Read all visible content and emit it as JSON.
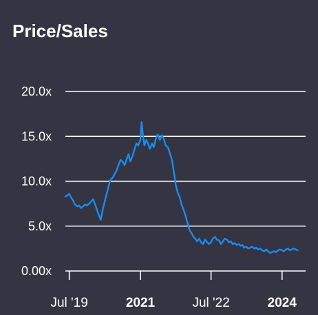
{
  "header": {
    "title": "Price/Sales"
  },
  "colors": {
    "background": "#353442",
    "line": "#1a8cf0",
    "grid": "#ffffff",
    "text": "#ffffff"
  },
  "chart_data": {
    "type": "line",
    "title": "Price/Sales",
    "xlabel": "",
    "ylabel": "",
    "ylim": [
      0,
      20
    ],
    "xlim": [
      "2019-06-01",
      "2024-07-01"
    ],
    "y_ticks": [
      {
        "value": 0,
        "label": "0.00x"
      },
      {
        "value": 5,
        "label": "5.0x"
      },
      {
        "value": 10,
        "label": "10.0x"
      },
      {
        "value": 15,
        "label": "15.0x"
      },
      {
        "value": 20,
        "label": "20.0x"
      }
    ],
    "x_ticks": [
      {
        "date": "2019-07-01",
        "label": "Jul '19",
        "bold": false
      },
      {
        "date": "2021-01-01",
        "label": "2021",
        "bold": true
      },
      {
        "date": "2022-07-01",
        "label": "Jul '22",
        "bold": false
      },
      {
        "date": "2024-01-01",
        "label": "2024",
        "bold": true
      }
    ],
    "grid": true,
    "series": [
      {
        "values": [
          [
            "2019-06-01",
            8.3
          ],
          [
            "2019-06-15",
            8.4
          ],
          [
            "2019-07-01",
            8.6
          ],
          [
            "2019-07-15",
            8.2
          ],
          [
            "2019-08-01",
            7.8
          ],
          [
            "2019-08-15",
            7.4
          ],
          [
            "2019-09-01",
            7.2
          ],
          [
            "2019-09-15",
            7.3
          ],
          [
            "2019-10-01",
            7.0
          ],
          [
            "2019-10-15",
            7.2
          ],
          [
            "2019-11-01",
            7.4
          ],
          [
            "2019-11-15",
            7.3
          ],
          [
            "2019-12-01",
            7.5
          ],
          [
            "2019-12-15",
            7.7
          ],
          [
            "2020-01-01",
            8.0
          ],
          [
            "2020-01-15",
            7.5
          ],
          [
            "2020-02-01",
            6.8
          ],
          [
            "2020-02-15",
            6.2
          ],
          [
            "2020-03-01",
            5.7
          ],
          [
            "2020-03-15",
            6.8
          ],
          [
            "2020-04-01",
            7.8
          ],
          [
            "2020-04-15",
            8.6
          ],
          [
            "2020-05-01",
            9.5
          ],
          [
            "2020-05-15",
            10.2
          ],
          [
            "2020-06-01",
            10.4
          ],
          [
            "2020-06-15",
            10.8
          ],
          [
            "2020-07-01",
            11.2
          ],
          [
            "2020-07-15",
            11.8
          ],
          [
            "2020-08-01",
            12.4
          ],
          [
            "2020-08-15",
            12.2
          ],
          [
            "2020-09-01",
            11.8
          ],
          [
            "2020-09-15",
            12.4
          ],
          [
            "2020-10-01",
            13.0
          ],
          [
            "2020-10-15",
            12.2
          ],
          [
            "2020-11-01",
            12.8
          ],
          [
            "2020-11-15",
            13.5
          ],
          [
            "2020-12-01",
            14.2
          ],
          [
            "2020-12-15",
            14.0
          ],
          [
            "2021-01-01",
            14.6
          ],
          [
            "2021-01-10",
            16.6
          ],
          [
            "2021-01-20",
            15.2
          ],
          [
            "2021-02-01",
            14.0
          ],
          [
            "2021-02-15",
            14.6
          ],
          [
            "2021-03-01",
            14.2
          ],
          [
            "2021-03-15",
            13.6
          ],
          [
            "2021-04-01",
            14.2
          ],
          [
            "2021-04-15",
            13.8
          ],
          [
            "2021-05-01",
            14.8
          ],
          [
            "2021-05-15",
            15.2
          ],
          [
            "2021-06-01",
            14.6
          ],
          [
            "2021-06-15",
            15.1
          ],
          [
            "2021-07-01",
            14.7
          ],
          [
            "2021-07-15",
            14.0
          ],
          [
            "2021-08-01",
            13.8
          ],
          [
            "2021-08-15",
            13.2
          ],
          [
            "2021-09-01",
            12.4
          ],
          [
            "2021-09-15",
            11.2
          ],
          [
            "2021-10-01",
            9.6
          ],
          [
            "2021-10-15",
            8.8
          ],
          [
            "2021-11-01",
            8.2
          ],
          [
            "2021-11-15",
            7.4
          ],
          [
            "2021-12-01",
            6.8
          ],
          [
            "2021-12-15",
            6.2
          ],
          [
            "2022-01-01",
            5.3
          ],
          [
            "2022-01-15",
            4.6
          ],
          [
            "2022-02-01",
            4.2
          ],
          [
            "2022-02-15",
            3.8
          ],
          [
            "2022-03-01",
            3.6
          ],
          [
            "2022-03-15",
            3.3
          ],
          [
            "2022-04-01",
            3.6
          ],
          [
            "2022-04-15",
            3.2
          ],
          [
            "2022-05-01",
            3.0
          ],
          [
            "2022-05-15",
            3.5
          ],
          [
            "2022-06-01",
            3.2
          ],
          [
            "2022-06-15",
            3.0
          ],
          [
            "2022-07-01",
            3.2
          ],
          [
            "2022-07-15",
            3.6
          ],
          [
            "2022-08-01",
            3.8
          ],
          [
            "2022-08-15",
            3.5
          ],
          [
            "2022-09-01",
            3.4
          ],
          [
            "2022-09-15",
            3.0
          ],
          [
            "2022-10-01",
            3.3
          ],
          [
            "2022-10-15",
            3.6
          ],
          [
            "2022-11-01",
            3.5
          ],
          [
            "2022-11-15",
            3.2
          ],
          [
            "2022-12-01",
            3.3
          ],
          [
            "2022-12-15",
            3.0
          ],
          [
            "2023-01-01",
            3.1
          ],
          [
            "2023-01-15",
            2.9
          ],
          [
            "2023-02-01",
            3.0
          ],
          [
            "2023-02-15",
            2.8
          ],
          [
            "2023-03-01",
            2.9
          ],
          [
            "2023-03-15",
            2.6
          ],
          [
            "2023-04-01",
            2.7
          ],
          [
            "2023-04-15",
            2.5
          ],
          [
            "2023-05-01",
            2.6
          ],
          [
            "2023-05-15",
            2.7
          ],
          [
            "2023-06-01",
            2.5
          ],
          [
            "2023-06-15",
            2.6
          ],
          [
            "2023-07-01",
            2.4
          ],
          [
            "2023-07-15",
            2.5
          ],
          [
            "2023-08-01",
            2.3
          ],
          [
            "2023-08-15",
            2.2
          ],
          [
            "2023-09-01",
            2.4
          ],
          [
            "2023-09-15",
            2.2
          ],
          [
            "2023-10-01",
            2.0
          ],
          [
            "2023-10-15",
            2.1
          ],
          [
            "2023-11-01",
            2.2
          ],
          [
            "2023-11-15",
            2.1
          ],
          [
            "2023-12-01",
            2.3
          ],
          [
            "2023-12-15",
            2.4
          ],
          [
            "2024-01-01",
            2.3
          ],
          [
            "2024-01-15",
            2.2
          ],
          [
            "2024-02-01",
            2.4
          ],
          [
            "2024-02-15",
            2.5
          ],
          [
            "2024-03-01",
            2.3
          ],
          [
            "2024-03-15",
            2.4
          ],
          [
            "2024-04-01",
            2.5
          ],
          [
            "2024-04-15",
            2.4
          ],
          [
            "2024-05-01",
            2.3
          ]
        ]
      }
    ]
  }
}
